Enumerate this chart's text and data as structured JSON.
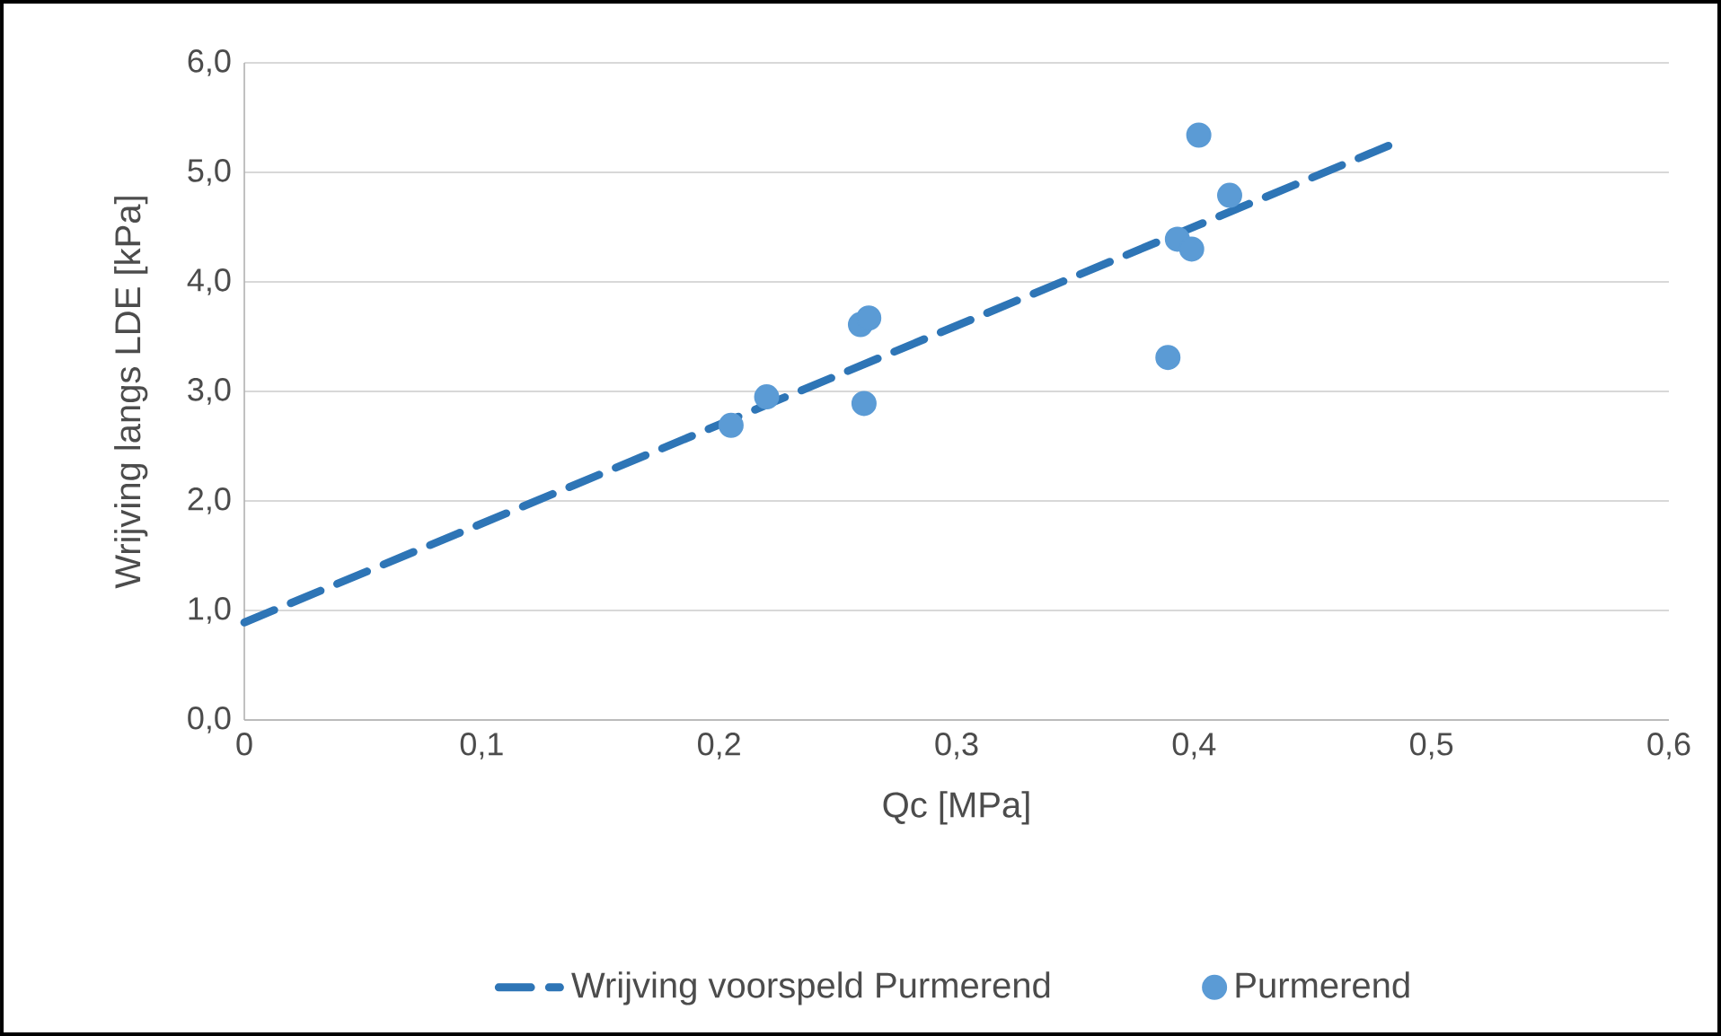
{
  "chart_data": {
    "type": "scatter",
    "xlabel": "Qc [MPa]",
    "ylabel": "Wrijving langs LDE [kPa]",
    "xlim": [
      0,
      0.6
    ],
    "ylim": [
      0,
      6
    ],
    "xticks": [
      0,
      {
        "value": 0.1,
        "label": "0,1"
      },
      {
        "value": 0.2,
        "label": "0,2"
      },
      {
        "value": 0.3,
        "label": "0,3"
      },
      {
        "value": 0.4,
        "label": "0,4"
      },
      {
        "value": 0.5,
        "label": "0,5"
      },
      {
        "value": 0.6,
        "label": "0,6"
      }
    ],
    "yticks": [
      {
        "value": 0,
        "label": "0,0"
      },
      {
        "value": 1,
        "label": "1,0"
      },
      {
        "value": 2,
        "label": "2,0"
      },
      {
        "value": 3,
        "label": "3,0"
      },
      {
        "value": 4,
        "label": "4,0"
      },
      {
        "value": 5,
        "label": "5,0"
      },
      {
        "value": 6,
        "label": "6,0"
      }
    ],
    "grid": "y",
    "legend": "bottom",
    "series": [
      {
        "name": "Wrijving voorspeld Purmerend",
        "type": "line",
        "line_style": "dashed",
        "marker": "none",
        "color": "#2e75b6",
        "x": [
          0,
          0.486
        ],
        "values": [
          0.89,
          5.28
        ]
      },
      {
        "name": "Purmerend",
        "marker": "circle",
        "color": "#5b9bd5",
        "x": [
          0.205,
          0.22,
          0.2595,
          0.263,
          0.261,
          0.389,
          0.393,
          0.399,
          0.402,
          0.415
        ],
        "values": [
          2.69,
          2.95,
          3.61,
          3.67,
          2.89,
          3.31,
          4.39,
          4.3,
          5.34,
          4.79
        ]
      }
    ]
  }
}
